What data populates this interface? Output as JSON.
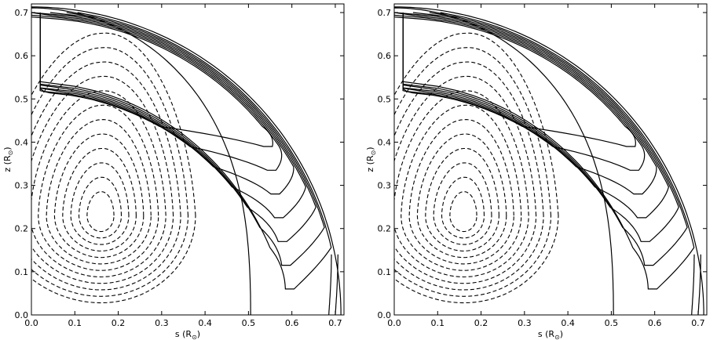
{
  "chart_data": [
    {
      "type": "contour",
      "xlabel_main": "s (R",
      "xlabel_sub": "⊙",
      "xlabel_close": ")",
      "ylabel_main": "z (R",
      "ylabel_sub": "⊙",
      "ylabel_close": ")",
      "xlim": [
        0.0,
        0.72
      ],
      "ylim": [
        0.0,
        0.72
      ],
      "xticks": [
        "0.0",
        "0.1",
        "0.2",
        "0.3",
        "0.4",
        "0.5",
        "0.6",
        "0.7"
      ],
      "yticks": [
        "0.0",
        "0.1",
        "0.2",
        "0.3",
        "0.4",
        "0.5",
        "0.6",
        "0.7"
      ],
      "boundary_radius": 0.713,
      "negative_cell": {
        "center": [
          0.16,
          0.23
        ],
        "levels": 12
      },
      "positive_lobes": {
        "tip": [
          0.59,
          0.14
        ],
        "levels": 7
      }
    },
    {
      "type": "contour",
      "xlabel_main": "s (R",
      "xlabel_sub": "⊙",
      "xlabel_close": ")",
      "ylabel_main": "z (R",
      "ylabel_sub": "⊙",
      "ylabel_close": ")",
      "xlim": [
        0.0,
        0.72
      ],
      "ylim": [
        0.0,
        0.72
      ],
      "xticks": [
        "0.0",
        "0.1",
        "0.2",
        "0.3",
        "0.4",
        "0.5",
        "0.6",
        "0.7"
      ],
      "yticks": [
        "0.0",
        "0.1",
        "0.2",
        "0.3",
        "0.4",
        "0.5",
        "0.6",
        "0.7"
      ],
      "boundary_radius": 0.713,
      "negative_cell": {
        "center": [
          0.16,
          0.23
        ],
        "levels": 12
      },
      "positive_lobes": {
        "tip": [
          0.59,
          0.14
        ],
        "levels": 7
      }
    }
  ]
}
